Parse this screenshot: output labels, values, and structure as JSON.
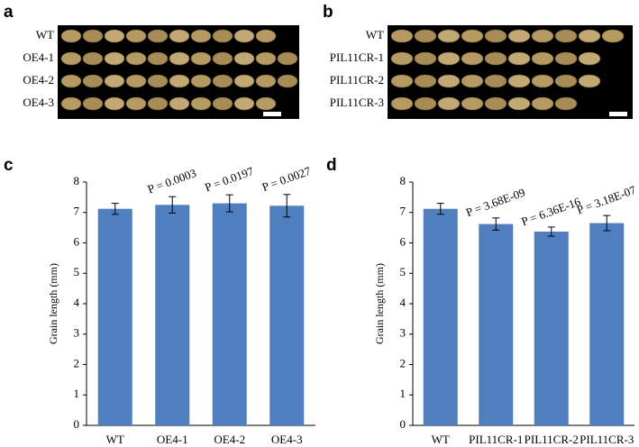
{
  "panel_a": {
    "panel": "a",
    "rows": [
      "WT",
      "OE4-1",
      "OE4-2",
      "OE4-3"
    ]
  },
  "panel_b": {
    "panel": "b",
    "rows": [
      "WT",
      "PIL11CR-1",
      "PIL11CR-2",
      "PIL11CR-3"
    ]
  },
  "chart_data": [
    {
      "type": "bar",
      "panel": "c",
      "y_label": "Grain length (mm)",
      "categories": [
        "WT",
        "OE4-1",
        "OE4-2",
        "OE4-3"
      ],
      "values": [
        7.12,
        7.25,
        7.3,
        7.22
      ],
      "errors": [
        0.18,
        0.27,
        0.28,
        0.37
      ],
      "annotations": [
        null,
        "P = 0.0003",
        "P = 0.0197",
        "P = 0.0027"
      ],
      "color": "#4f7fbf",
      "ylim": [
        0,
        8
      ],
      "yticks": [
        0,
        1,
        2,
        3,
        4,
        5,
        6,
        7,
        8
      ]
    },
    {
      "type": "bar",
      "panel": "d",
      "y_label": "Grain length (mm)",
      "categories": [
        "WT",
        "PIL11CR-1",
        "PIL11CR-2",
        "PIL11CR-3"
      ],
      "values": [
        7.12,
        6.62,
        6.37,
        6.65
      ],
      "errors": [
        0.18,
        0.2,
        0.15,
        0.25
      ],
      "annotations": [
        null,
        "P = 3.68E-09",
        "P = 6.36E-16",
        "P = 3.18E-07"
      ],
      "color": "#4f7fbf",
      "ylim": [
        0,
        8
      ],
      "yticks": [
        0,
        1,
        2,
        3,
        4,
        5,
        6,
        7,
        8
      ]
    }
  ]
}
